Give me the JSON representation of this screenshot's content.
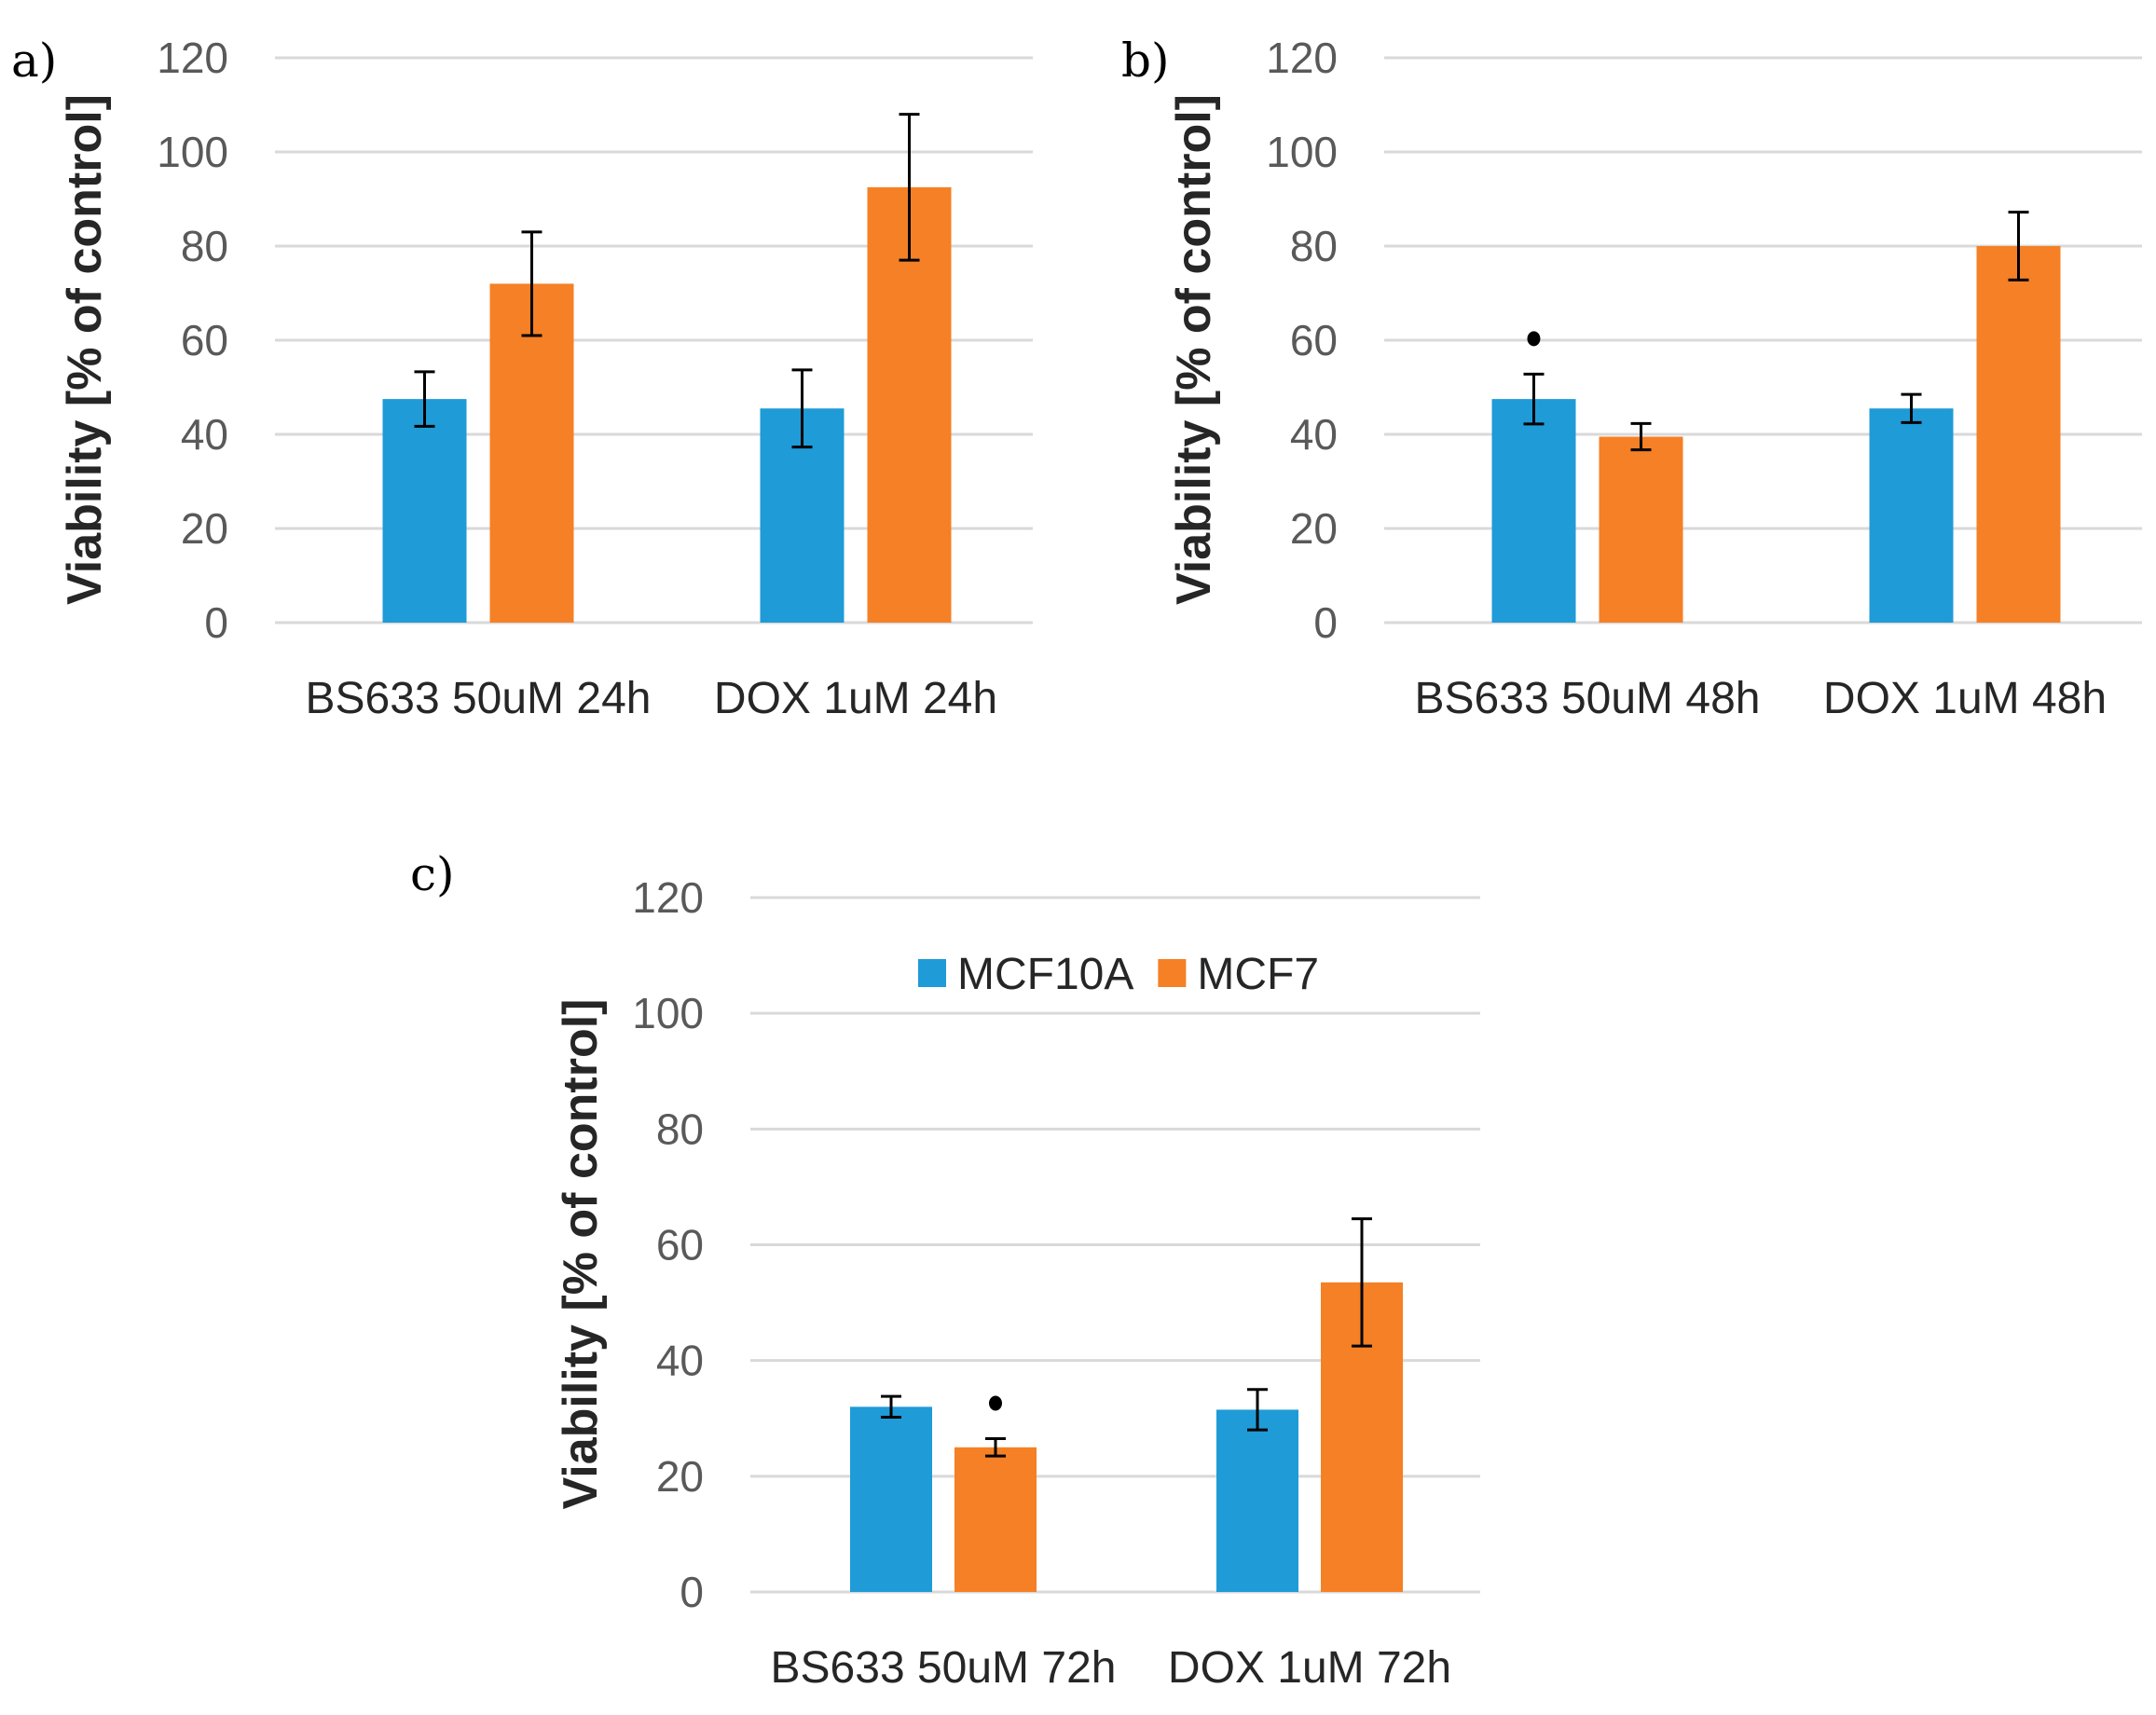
{
  "colors": {
    "MCF10A": "#1f9bd7",
    "MCF7": "#f58025"
  },
  "chart_data": [
    {
      "panel": "a)",
      "type": "bar",
      "categories": [
        "BS633 50uM 24h",
        "DOX 1uM 24h"
      ],
      "ylabel": "Viability [% of control]",
      "ylim": [
        0,
        120
      ],
      "yticks": [
        0,
        20,
        40,
        60,
        80,
        100,
        120
      ],
      "grid": true,
      "series": [
        {
          "values": [
            47.5,
            45.5
          ],
          "errors": [
            5.8,
            8.2
          ],
          "color": "MCF10A",
          "marked": [
            false,
            false
          ]
        },
        {
          "values": [
            72,
            92.5
          ],
          "errors": [
            11,
            15.5
          ],
          "color": "MCF7",
          "marked": [
            false,
            false
          ]
        }
      ]
    },
    {
      "panel": "b)",
      "type": "bar",
      "categories": [
        "BS633 50uM 48h",
        "DOX 1uM 48h"
      ],
      "ylabel": "Viability [% of control]",
      "ylim": [
        0,
        120
      ],
      "yticks": [
        0,
        20,
        40,
        60,
        80,
        100,
        120
      ],
      "grid": true,
      "series": [
        {
          "values": [
            47.5,
            45.5
          ],
          "errors": [
            5.3,
            3
          ],
          "color": "MCF10A",
          "marked": [
            true,
            false
          ]
        },
        {
          "values": [
            39.5,
            80
          ],
          "errors": [
            2.8,
            7.2
          ],
          "color": "MCF7",
          "marked": [
            false,
            false
          ]
        }
      ]
    },
    {
      "panel": "c)",
      "type": "bar",
      "categories": [
        "BS633 50uM 72h",
        "DOX 1uM 72h"
      ],
      "ylabel": "Viability [% of control]",
      "ylim": [
        0,
        120
      ],
      "yticks": [
        0,
        20,
        40,
        60,
        80,
        100,
        120
      ],
      "grid": true,
      "legend": {
        "position": "top-center",
        "entries": [
          "MCF10A",
          "MCF7"
        ]
      },
      "series": [
        {
          "name": "MCF10A",
          "values": [
            32,
            31.5
          ],
          "errors": [
            1.8,
            3.5
          ],
          "color": "MCF10A",
          "marked": [
            false,
            false
          ]
        },
        {
          "name": "MCF7",
          "values": [
            25,
            53.5
          ],
          "errors": [
            1.5,
            11
          ],
          "color": "MCF7",
          "marked": [
            true,
            false
          ]
        }
      ]
    }
  ]
}
